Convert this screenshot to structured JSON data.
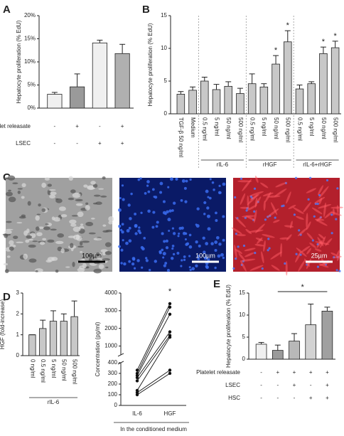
{
  "chart_data": [
    {
      "type": "bar",
      "panel": "A",
      "ylabel": "Hepatocyte proliferation (% EdU)",
      "values": [
        3.0,
        4.6,
        14.1,
        11.8
      ],
      "errors": [
        0.4,
        2.8,
        0.6,
        2.0
      ],
      "colors": [
        "#f0f0f0",
        "#9a9a9a",
        "#f0f0f0",
        "#b0b0b0"
      ],
      "ylim": [
        0,
        20
      ],
      "yticks": [
        {
          "value": 0,
          "label": "0%"
        },
        {
          "value": 5,
          "label": "5%"
        },
        {
          "value": 10,
          "label": "10%"
        },
        {
          "value": 15,
          "label": "15%"
        },
        {
          "value": 20,
          "label": "20%"
        }
      ],
      "rows": [
        {
          "label": "Platelet releasate",
          "values": [
            "-",
            "+",
            "-",
            "+"
          ]
        },
        {
          "label": "LSEC",
          "values": [
            "-",
            "-",
            "+",
            "+"
          ]
        }
      ]
    },
    {
      "type": "bar",
      "panel": "B",
      "ylabel": "Hepatocyte proliferation (% EdU)",
      "groups": [
        {
          "name": null,
          "categories": [
            "TGF-β 50 ng/ml",
            "Medium"
          ]
        },
        {
          "name": "rIL-6",
          "categories": [
            "0.5 ng/ml",
            "5 ng/ml",
            "50 ng/ml",
            "500 ng/ml"
          ]
        },
        {
          "name": "rHGF",
          "categories": [
            "0.5 ng/ml",
            "5 ng/ml",
            "50 ng/ml",
            "500 ng/ml"
          ]
        },
        {
          "name": "rIL-6+rHGF",
          "categories": [
            "0.5 ng/ml",
            "5 ng/ml",
            "50 ng/ml",
            "500 ng/ml"
          ]
        }
      ],
      "values": [
        3.0,
        3.6,
        5.0,
        3.7,
        4.2,
        3.1,
        4.6,
        4.1,
        7.6,
        11.0,
        3.8,
        4.6,
        9.2,
        10.1
      ],
      "errors": [
        0.4,
        0.5,
        0.6,
        0.8,
        0.7,
        0.8,
        1.5,
        0.5,
        1.3,
        1.7,
        0.6,
        0.3,
        1.0,
        1.0
      ],
      "significance": [
        null,
        null,
        null,
        null,
        null,
        null,
        null,
        null,
        "*",
        "*",
        null,
        null,
        "*",
        "*"
      ],
      "color": "#c8c8c8",
      "ylim": [
        0,
        15
      ],
      "yticks": [
        0,
        5,
        10,
        15
      ]
    },
    {
      "type": "image",
      "panel": "C",
      "images": [
        {
          "scale_bar": "100µm",
          "color": "#a0a0a0"
        },
        {
          "scale_bar": "100µm",
          "color": "#0a1a66"
        },
        {
          "scale_bar": "25µm",
          "color": "#b3202c"
        }
      ]
    },
    {
      "type": "bar",
      "panel": "D",
      "ylabel": "HGF (fold-increase)",
      "groups": [
        {
          "name": "rIL-6",
          "categories": [
            "0 ng/ml",
            "0.5 ng/ml",
            "5 ng/ml",
            "50 ng/ml",
            "500 ng/ml"
          ]
        }
      ],
      "values": [
        1.0,
        1.3,
        1.65,
        1.65,
        1.87
      ],
      "errors": [
        0,
        0.4,
        0.5,
        0.35,
        0.75
      ],
      "color": "#c8c8c8",
      "ylim": [
        0,
        3
      ],
      "yticks": [
        0,
        1,
        2,
        3
      ]
    },
    {
      "type": "line",
      "ylabel": "Concentration (pg/ml)",
      "xlabel": "In the conditioned medium",
      "categories": [
        "IL-6",
        "HGF"
      ],
      "significance": [
        null,
        "*"
      ],
      "series": [
        {
          "values": [
            330,
            3400
          ]
        },
        {
          "values": [
            300,
            3200
          ]
        },
        {
          "values": [
            280,
            2800
          ]
        },
        {
          "values": [
            260,
            1800
          ]
        },
        {
          "values": [
            230,
            1600
          ]
        },
        {
          "values": [
            140,
            1500
          ]
        },
        {
          "values": [
            120,
            330
          ]
        },
        {
          "values": [
            100,
            300
          ]
        }
      ],
      "color": "#111111",
      "ylim": [
        0,
        4000
      ],
      "ybreak": [
        400,
        500
      ],
      "yticks": [
        0,
        100,
        200,
        300,
        400,
        1000,
        2000,
        3000,
        4000
      ]
    },
    {
      "type": "bar",
      "panel": "E",
      "ylabel": "Hepatocyte proliferation (% EdU)",
      "values": [
        3.4,
        2.0,
        4.1,
        7.8,
        10.9
      ],
      "errors": [
        0.4,
        1.2,
        1.7,
        4.7,
        0.9
      ],
      "colors": [
        "#f0f0f0",
        "#9a9a9a",
        "#b8b8b8",
        "#d2d2d2",
        "#a0a0a0"
      ],
      "ylim": [
        0,
        15
      ],
      "yticks": [
        0,
        5,
        10,
        15
      ],
      "comparisons": [
        {
          "text": "*",
          "between": [
            1,
            4
          ]
        }
      ],
      "rows": [
        {
          "label": "Platelet releasate",
          "values": [
            "-",
            "+",
            "+",
            "+",
            "+"
          ]
        },
        {
          "label": "LSEC",
          "values": [
            "-",
            "-",
            "+",
            "-",
            "+"
          ]
        },
        {
          "label": "HSC",
          "values": [
            "-",
            "-",
            "-",
            "+",
            "+"
          ]
        }
      ]
    }
  ]
}
